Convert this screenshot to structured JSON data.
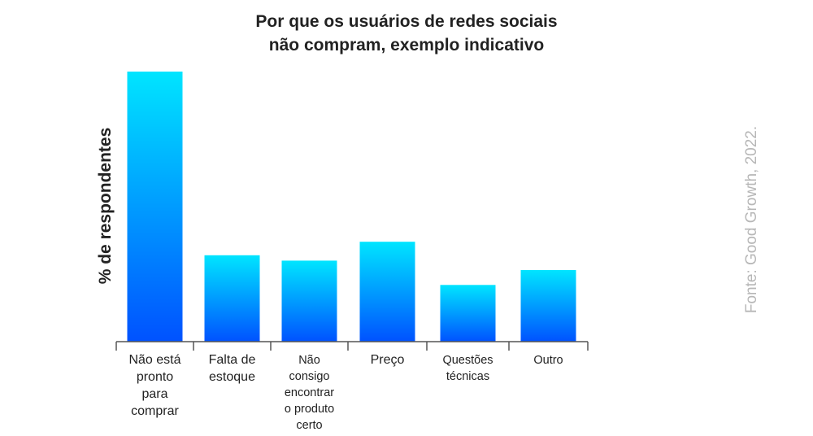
{
  "chart_data": {
    "type": "bar",
    "title": [
      "Por que os usuários de redes sociais",
      "não compram, exemplo indicativo"
    ],
    "ylabel": "% de respondentes",
    "xlabel": "",
    "source": "Fonte: Good Growth, 2022.",
    "ylim": [
      0,
      100
    ],
    "grid": false,
    "legend": "none",
    "categories": [
      [
        "Não está",
        "pronto",
        "para",
        "comprar"
      ],
      [
        "Falta de",
        "estoque"
      ],
      [
        "Não",
        "consigo",
        "encontrar",
        "o produto",
        "certo"
      ],
      [
        "Preço"
      ],
      [
        "Questões",
        "técnicas"
      ],
      [
        "Outro"
      ]
    ],
    "values": [
      100,
      32,
      30,
      37,
      21,
      26.5
    ],
    "colors": {
      "bar_top": "#00e5ff",
      "bar_bottom": "#0052ff",
      "axis": "#555555",
      "source": "#b7b7b7"
    }
  }
}
